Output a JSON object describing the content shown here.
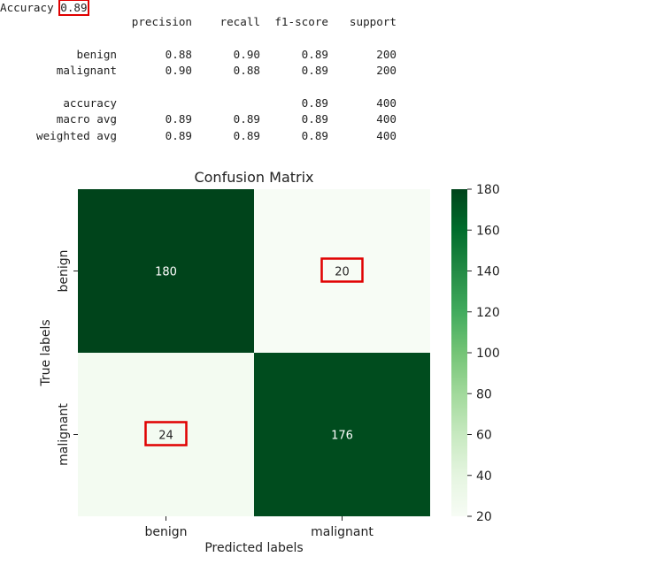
{
  "report": {
    "accuracy_label": "Accuracy",
    "accuracy_value": "0.89",
    "headers": [
      "precision",
      "recall",
      "f1-score",
      "support"
    ],
    "rows": [
      {
        "label": "benign",
        "precision": "0.88",
        "recall": "0.90",
        "f1": "0.89",
        "support": "200"
      },
      {
        "label": "malignant",
        "precision": "0.90",
        "recall": "0.88",
        "f1": "0.89",
        "support": "200"
      },
      {
        "label": "accuracy",
        "precision": "",
        "recall": "",
        "f1": "0.89",
        "support": "400"
      },
      {
        "label": "macro avg",
        "precision": "0.89",
        "recall": "0.89",
        "f1": "0.89",
        "support": "400"
      },
      {
        "label": "weighted avg",
        "precision": "0.89",
        "recall": "0.89",
        "f1": "0.89",
        "support": "400"
      }
    ]
  },
  "chart_data": {
    "type": "heatmap",
    "title": "Confusion Matrix",
    "xlabel": "Predicted labels",
    "ylabel": "True labels",
    "x_categories": [
      "benign",
      "malignant"
    ],
    "y_categories": [
      "benign",
      "malignant"
    ],
    "values": [
      [
        180,
        20
      ],
      [
        24,
        176
      ]
    ],
    "highlighted_cells": [
      [
        0,
        1
      ],
      [
        1,
        0
      ]
    ],
    "colorbar": {
      "min": 20,
      "max": 180,
      "ticks": [
        20,
        40,
        60,
        80,
        100,
        120,
        140,
        160,
        180
      ],
      "colormap": "Greens",
      "low_color": "#f7fcf5",
      "high_color": "#00441b"
    },
    "highlight_color": "#e00000"
  }
}
